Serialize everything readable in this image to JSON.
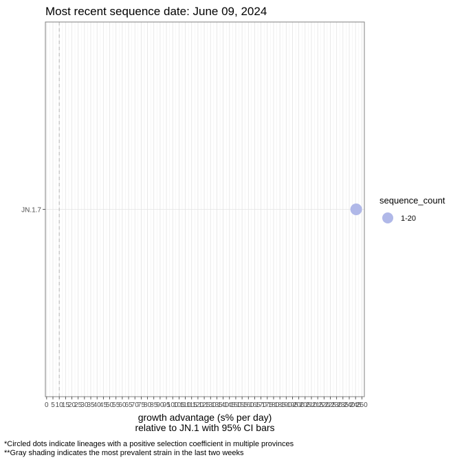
{
  "chart_data": {
    "type": "scatter",
    "title": "Most recent sequence date: June 09, 2024",
    "xlabel_line1": "growth advantage (s% per day)",
    "xlabel_line2": "relative to  JN.1  with 95% CI bars",
    "xlim": [
      -1,
      252
    ],
    "x_ticks": [
      0,
      5,
      10,
      15,
      20,
      25,
      30,
      35,
      40,
      45,
      50,
      55,
      60,
      65,
      70,
      75,
      80,
      85,
      90,
      95,
      100,
      105,
      110,
      115,
      120,
      125,
      130,
      135,
      140,
      145,
      150,
      155,
      160,
      165,
      170,
      175,
      180,
      185,
      190,
      195,
      200,
      205,
      210,
      215,
      220,
      225,
      230,
      235,
      240,
      245,
      250
    ],
    "x_tick_labels": [
      "0",
      "5",
      "10",
      "15",
      "20",
      "25",
      "30",
      "35",
      "40",
      "45",
      "50",
      "55",
      "60",
      "65",
      "70",
      "75",
      "80",
      "85",
      "90",
      "95",
      "100",
      "105",
      "110",
      "115",
      "120",
      "125",
      "130",
      "135",
      "140",
      "145",
      "150",
      "155",
      "160",
      "165",
      "170",
      "175",
      "180",
      "185",
      "190",
      "195",
      "200",
      "205",
      "210",
      "215",
      "220",
      "225",
      "230",
      "235",
      "240",
      "245",
      "250"
    ],
    "reference_line_x": 10,
    "categories": [
      "JN.1.7"
    ],
    "points": [
      {
        "lineage": "JN.1.7",
        "x": 245.5,
        "sequence_count": "1-20"
      }
    ],
    "grid": true,
    "legend": {
      "title": "sequence_count",
      "placement": "right",
      "entries": [
        {
          "label": "1-20",
          "color": "#b0b8e8"
        }
      ]
    },
    "point_color": "#b0b8e8",
    "footnotes": [
      "*Circled dots indicate lineages with a positive selection coefficient in multiple provinces",
      "**Gray shading indicates the most prevalent strain in the last two weeks"
    ]
  }
}
